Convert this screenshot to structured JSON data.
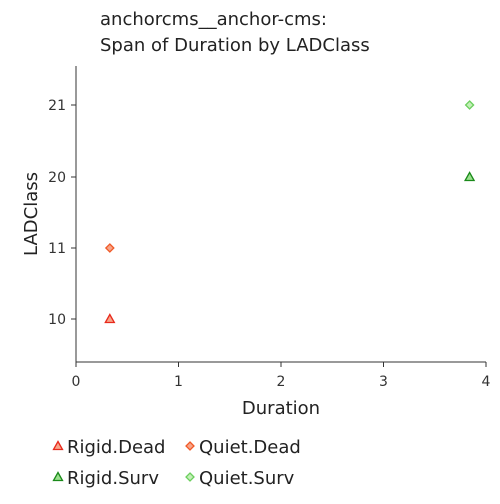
{
  "chart_data": {
    "type": "scatter",
    "title_lines": [
      "anchorcms__anchor-cms:",
      "Span of Duration by LADClass"
    ],
    "xlabel": "Duration",
    "ylabel": "LADClass",
    "xlim": [
      0,
      4
    ],
    "x_ticks": [
      0,
      1,
      2,
      3,
      4
    ],
    "y_categories": [
      "10",
      "11",
      "20",
      "21"
    ],
    "grid": false,
    "legend_position": "bottom",
    "series": [
      {
        "name": "Rigid.Dead",
        "marker": "triangle",
        "fill": "#f7a58a",
        "stroke": "#e8291c",
        "points": [
          {
            "x": 0.33,
            "y": "10"
          }
        ]
      },
      {
        "name": "Quiet.Dead",
        "marker": "diamond",
        "fill": "#f7a58a",
        "stroke": "#f05a28",
        "points": [
          {
            "x": 0.33,
            "y": "11"
          }
        ]
      },
      {
        "name": "Rigid.Surv",
        "marker": "triangle",
        "fill": "#9be08e",
        "stroke": "#1a8a1a",
        "points": [
          {
            "x": 3.84,
            "y": "20"
          }
        ]
      },
      {
        "name": "Quiet.Surv",
        "marker": "diamond",
        "fill": "#c4efb8",
        "stroke": "#6bcf5e",
        "points": [
          {
            "x": 3.84,
            "y": "21"
          }
        ]
      }
    ]
  }
}
